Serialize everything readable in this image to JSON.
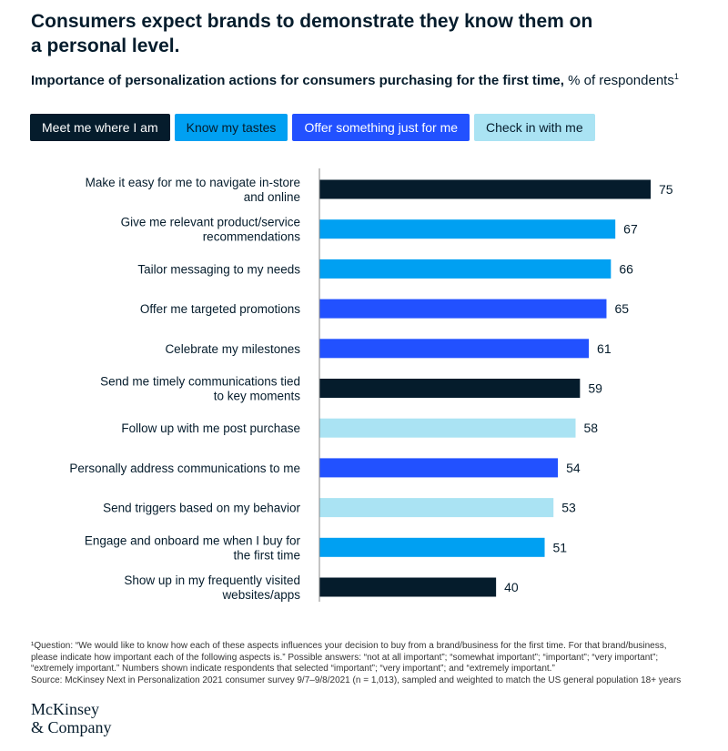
{
  "header": {
    "title": "Consumers expect brands to demonstrate they know them on a personal level.",
    "subtitle_bold": "Importance of personalization actions for consumers purchasing for the first time,",
    "subtitle_unit": " % of respondents",
    "subtitle_footnote_mark": "1"
  },
  "legend": [
    {
      "label": "Meet me where I am",
      "color": "#051c2c",
      "text_color": "#ffffff"
    },
    {
      "label": "Know my tastes",
      "color": "#00a0f2",
      "text_color": "#051c2c"
    },
    {
      "label": "Offer something just for me",
      "color": "#2251ff",
      "text_color": "#ffffff"
    },
    {
      "label": "Check in with me",
      "color": "#aae3f3",
      "text_color": "#051c2c"
    }
  ],
  "chart_data": {
    "type": "bar",
    "orientation": "horizontal",
    "xlim": [
      0,
      75
    ],
    "grid": false,
    "legend_placement": "top",
    "categories": [
      [
        "Make it easy for me to navigate in-store",
        "and online"
      ],
      [
        "Give me relevant product/service",
        "recommendations"
      ],
      [
        "Tailor messaging to my needs"
      ],
      [
        "Offer me targeted promotions"
      ],
      [
        "Celebrate my milestones"
      ],
      [
        "Send me timely communications tied",
        "to key moments"
      ],
      [
        "Follow up with me post purchase"
      ],
      [
        "Personally address communications to me"
      ],
      [
        "Send triggers based on my behavior"
      ],
      [
        "Engage and onboard me when I buy for",
        "the first time"
      ],
      [
        "Show up in my frequently visited",
        "websites/apps"
      ]
    ],
    "values": [
      75,
      67,
      66,
      65,
      61,
      59,
      58,
      54,
      53,
      51,
      40
    ],
    "groups": [
      0,
      1,
      1,
      2,
      2,
      0,
      3,
      2,
      3,
      1,
      0
    ]
  },
  "footnote": {
    "lines": [
      "¹Question: “We would like to know how each of these aspects influences your decision to buy from a brand/business for the first time. For that brand/business,",
      " please indicate how important each of the following aspects is.” Possible answers: “not at all important”; “somewhat important”; “important”; “very important”;",
      " “extremely important.” Numbers shown indicate respondents that selected “important”; “very important”; and “extremely important.”",
      " Source: McKinsey Next in Personalization 2021 consumer survey 9/7–9/8/2021 (n = 1,013), sampled and weighted to match the US general population 18+ years"
    ]
  },
  "logo": {
    "line1": "McKinsey",
    "line2": "& Company"
  }
}
